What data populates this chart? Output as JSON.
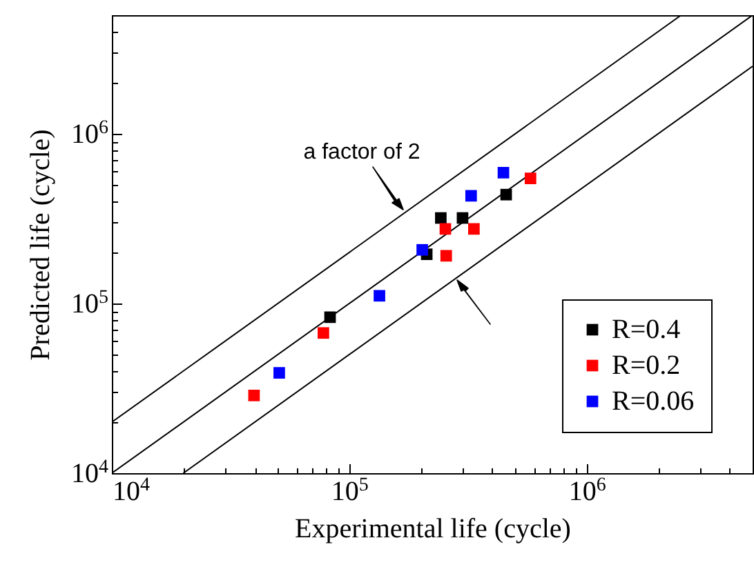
{
  "chart_data": {
    "type": "scatter",
    "xlabel": "Experimental life (cycle)",
    "ylabel": "Predicted life (cycle)",
    "log": "xy",
    "grid": false,
    "marker": "square",
    "legend": "bottom right",
    "annotations": [
      "a factor of 2"
    ],
    "xlim": [
      10000,
      5000000
    ],
    "ylim": [
      10000,
      5000000
    ],
    "xticks": [
      {
        "value": 10000,
        "label": "10$^{4}$"
      },
      {
        "value": 20000,
        "label": null
      },
      {
        "value": 30000,
        "label": null
      },
      {
        "value": 40000,
        "label": null
      },
      {
        "value": 50000,
        "label": null
      },
      {
        "value": 60000,
        "label": null
      },
      {
        "value": 70000,
        "label": null
      },
      {
        "value": 80000,
        "label": null
      },
      {
        "value": 90000,
        "label": null
      },
      {
        "value": 100000,
        "label": "10$^{5}$"
      },
      {
        "value": 200000,
        "label": null
      },
      {
        "value": 300000,
        "label": null
      },
      {
        "value": 400000,
        "label": null
      },
      {
        "value": 500000,
        "label": null
      },
      {
        "value": 600000,
        "label": null
      },
      {
        "value": 700000,
        "label": null
      },
      {
        "value": 800000,
        "label": null
      },
      {
        "value": 900000,
        "label": null
      },
      {
        "value": 1000000,
        "label": "10$^{6}$"
      },
      {
        "value": 2000000,
        "label": null
      },
      {
        "value": 3000000,
        "label": null
      },
      {
        "value": 4000000,
        "label": null
      }
    ],
    "yticks": [
      {
        "value": 10000,
        "label": "10$^{4}$"
      },
      {
        "value": 20000,
        "label": null
      },
      {
        "value": 30000,
        "label": null
      },
      {
        "value": 40000,
        "label": null
      },
      {
        "value": 50000,
        "label": null
      },
      {
        "value": 60000,
        "label": null
      },
      {
        "value": 70000,
        "label": null
      },
      {
        "value": 80000,
        "label": null
      },
      {
        "value": 90000,
        "label": null
      },
      {
        "value": 100000,
        "label": "10$^{5}$"
      },
      {
        "value": 200000,
        "label": null
      },
      {
        "value": 300000,
        "label": null
      },
      {
        "value": 400000,
        "label": null
      },
      {
        "value": 500000,
        "label": null
      },
      {
        "value": 600000,
        "label": null
      },
      {
        "value": 700000,
        "label": null
      },
      {
        "value": 800000,
        "label": null
      },
      {
        "value": 900000,
        "label": null
      },
      {
        "value": 1000000,
        "label": "10$^{6}$"
      },
      {
        "value": 2000000,
        "label": null
      },
      {
        "value": 3000000,
        "label": null
      },
      {
        "value": 4000000,
        "label": null
      }
    ],
    "series": [
      {
        "type": "line",
        "marker": "none",
        "color": "#000000",
        "x": [
          10000,
          2500000
        ],
        "values": [
          20000,
          5000000
        ]
      },
      {
        "type": "line",
        "marker": "none",
        "color": "#000000",
        "x": [
          10000,
          5000000
        ],
        "values": [
          10000,
          5000000
        ]
      },
      {
        "type": "line",
        "marker": "none",
        "color": "#000000",
        "x": [
          20000,
          5000000
        ],
        "values": [
          10000,
          2500000
        ]
      },
      {
        "name": "R=0.4",
        "color": "#000000",
        "x": [
          83000,
          212000,
          243000,
          300000,
          458000
        ],
        "values": [
          83000,
          195000,
          319000,
          319000,
          438000
        ]
      },
      {
        "name": "R=0.2",
        "color": "#ff0000",
        "x": [
          39700,
          77800,
          254000,
          256000,
          335000,
          580000
        ],
        "values": [
          28700,
          67000,
          275000,
          191000,
          275000,
          546000
        ]
      },
      {
        "name": "R=0.06",
        "color": "#0000ff",
        "x": [
          50700,
          134000,
          203000,
          326000,
          446000
        ],
        "values": [
          39000,
          111000,
          207000,
          431000,
          590000
        ]
      }
    ]
  }
}
